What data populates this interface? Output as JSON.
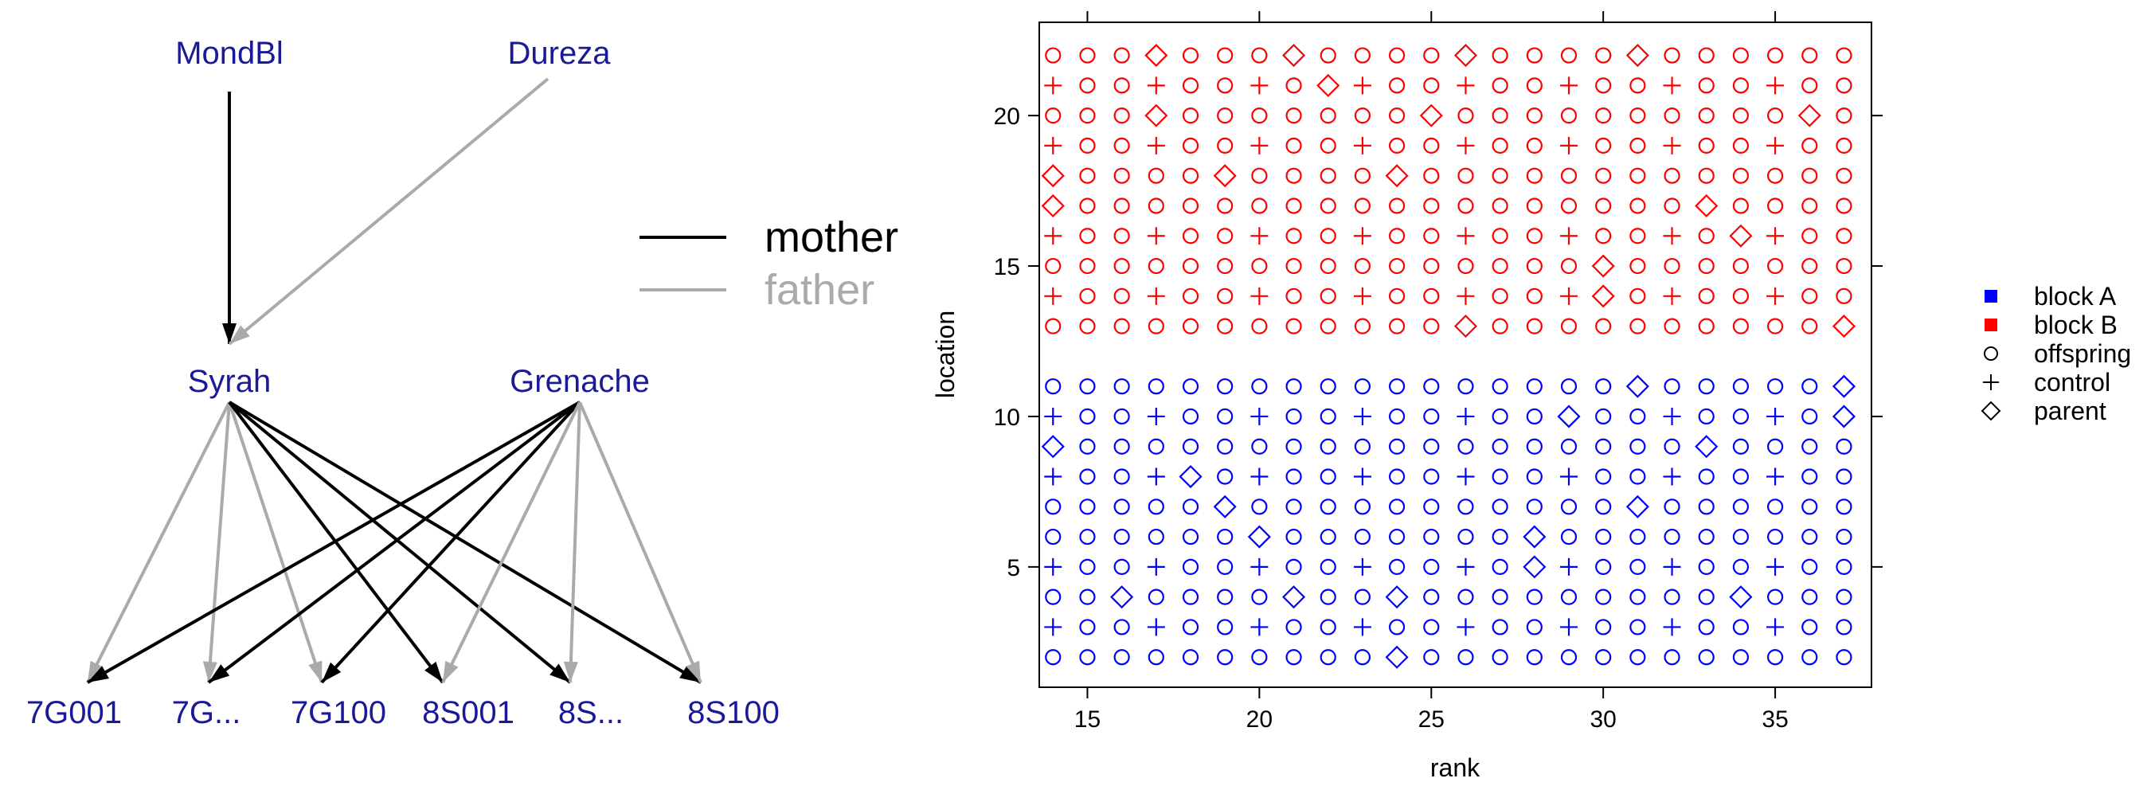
{
  "pedigree": {
    "top_nodes": [
      "MondBl",
      "Dureza"
    ],
    "parents": [
      "Syrah",
      "Grenache"
    ],
    "offspring": [
      "7G001",
      "7G...",
      "7G100",
      "8S001",
      "8S...",
      "8S100"
    ],
    "legend": {
      "mother": "mother",
      "father": "father"
    },
    "edges": [
      {
        "from": "MondBl",
        "to": "Syrah",
        "role": "mother"
      },
      {
        "from": "Dureza",
        "to": "Syrah",
        "role": "father"
      },
      {
        "from": "Syrah",
        "to": "7G001",
        "role": "father"
      },
      {
        "from": "Syrah",
        "to": "7G...",
        "role": "father"
      },
      {
        "from": "Syrah",
        "to": "7G100",
        "role": "father"
      },
      {
        "from": "Syrah",
        "to": "8S001",
        "role": "mother"
      },
      {
        "from": "Syrah",
        "to": "8S...",
        "role": "mother"
      },
      {
        "from": "Syrah",
        "to": "8S100",
        "role": "mother"
      },
      {
        "from": "Grenache",
        "to": "7G001",
        "role": "mother"
      },
      {
        "from": "Grenache",
        "to": "7G...",
        "role": "mother"
      },
      {
        "from": "Grenache",
        "to": "7G100",
        "role": "mother"
      },
      {
        "from": "Grenache",
        "to": "8S001",
        "role": "father"
      },
      {
        "from": "Grenache",
        "to": "8S...",
        "role": "father"
      },
      {
        "from": "Grenache",
        "to": "8S100",
        "role": "father"
      }
    ],
    "colors": {
      "node_text": "#1a1a99",
      "mother": "#000000",
      "father": "#aaaaaa"
    }
  },
  "chart_data": {
    "type": "scatter",
    "xlabel": "rank",
    "ylabel": "location",
    "xlim": [
      13.6,
      37.8
    ],
    "ylim": [
      1.0,
      23.1
    ],
    "xticks": [
      15,
      20,
      25,
      30,
      35
    ],
    "yticks": [
      5,
      10,
      15,
      20
    ],
    "x_range": [
      14,
      37
    ],
    "blocks": [
      {
        "name": "block A",
        "color": "#0000ff",
        "locations": [
          2,
          3,
          4,
          5,
          6,
          7,
          8,
          9,
          10,
          11
        ]
      },
      {
        "name": "block B",
        "color": "#ff0000",
        "locations": [
          13,
          14,
          15,
          16,
          17,
          18,
          19,
          20,
          21,
          22
        ]
      }
    ],
    "default_type": "offspring",
    "control_rows": {
      "locations": [
        3,
        5,
        8,
        10,
        14,
        16,
        19,
        21
      ],
      "start_rank": 14,
      "step": 3
    },
    "parents": [
      [
        17,
        22
      ],
      [
        21,
        22
      ],
      [
        26,
        22
      ],
      [
        31,
        22
      ],
      [
        22,
        21
      ],
      [
        17,
        20
      ],
      [
        25,
        20
      ],
      [
        36,
        20
      ],
      [
        14,
        18
      ],
      [
        19,
        18
      ],
      [
        24,
        18
      ],
      [
        14,
        17
      ],
      [
        33,
        17
      ],
      [
        34,
        16
      ],
      [
        30,
        15
      ],
      [
        30,
        14
      ],
      [
        26,
        13
      ],
      [
        37,
        13
      ],
      [
        31,
        11
      ],
      [
        37,
        11
      ],
      [
        29,
        10
      ],
      [
        37,
        10
      ],
      [
        14,
        9
      ],
      [
        33,
        9
      ],
      [
        18,
        8
      ],
      [
        19,
        7
      ],
      [
        31,
        7
      ],
      [
        20,
        6
      ],
      [
        28,
        6
      ],
      [
        28,
        5
      ],
      [
        16,
        4
      ],
      [
        21,
        4
      ],
      [
        24,
        4
      ],
      [
        34,
        4
      ],
      [
        24,
        2
      ]
    ],
    "legend": [
      {
        "label": "block A",
        "symbol": "square",
        "color": "#0000ff"
      },
      {
        "label": "block B",
        "symbol": "square",
        "color": "#ff0000"
      },
      {
        "label": "offspring",
        "symbol": "circle",
        "color": "#000000"
      },
      {
        "label": "control",
        "symbol": "plus",
        "color": "#000000"
      },
      {
        "label": "parent",
        "symbol": "diamond",
        "color": "#000000"
      }
    ]
  }
}
